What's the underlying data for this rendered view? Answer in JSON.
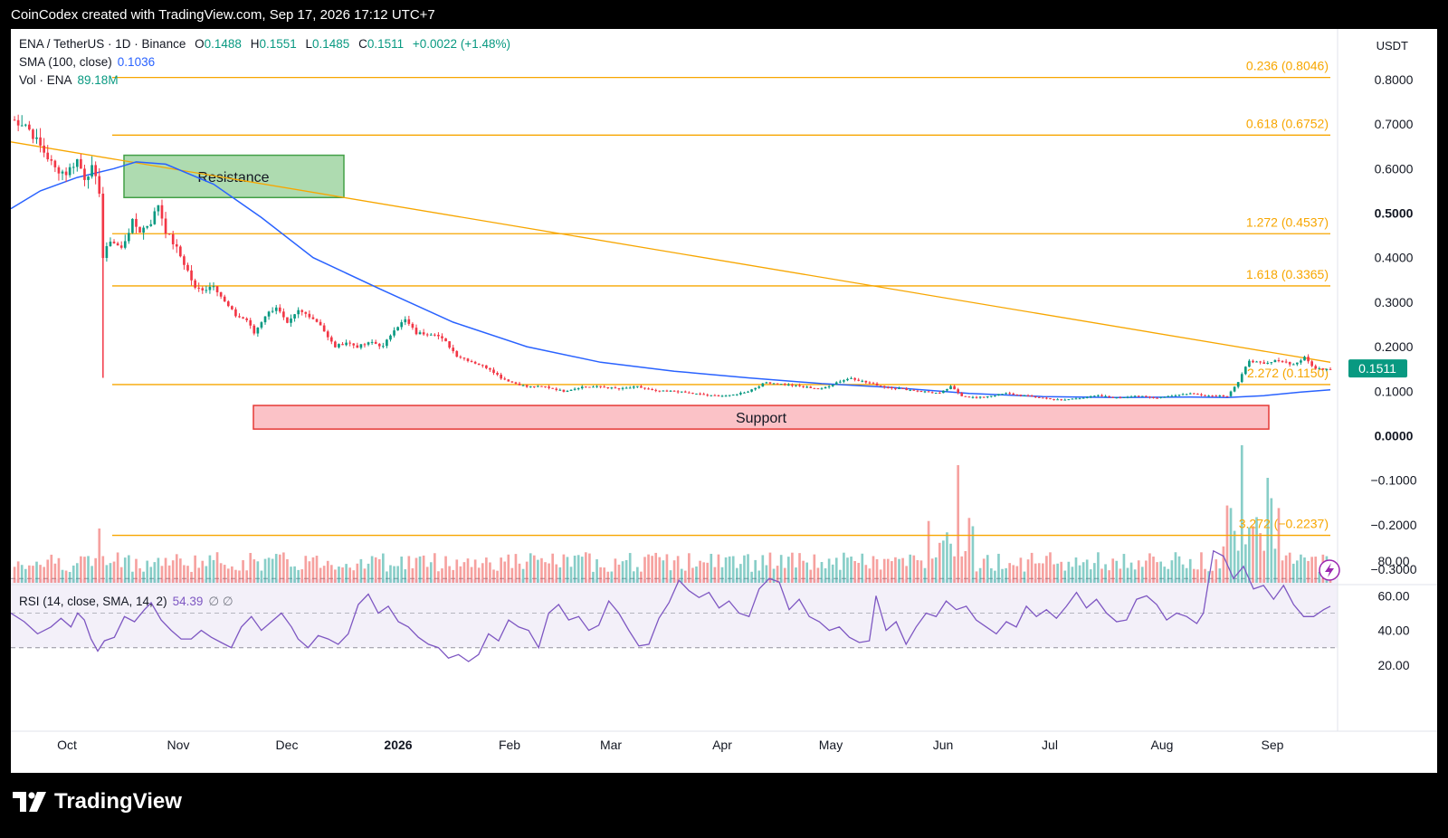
{
  "header": {
    "text": "CoinCodex created with TradingView.com, Sep 17, 2026 17:12 UTC+7"
  },
  "footer": {
    "brand": "TradingView",
    "logo_icon": "tradingview-logo-icon"
  },
  "legend": {
    "symbol": "ENA / TetherUS · 1D · Binance",
    "o_label": "O",
    "o_value": "0.1488",
    "h_label": "H",
    "h_value": "0.1551",
    "l_label": "L",
    "l_value": "0.1485",
    "c_label": "C",
    "c_value": "0.1511",
    "change": "+0.0022 (+1.48%)",
    "sma_label": "SMA (100, close)",
    "sma_value": "0.1036",
    "vol_label": "Vol · ENA",
    "vol_value": "89.18M",
    "rsi_label": "RSI (14, close, SMA, 14, 2)",
    "rsi_value": "54.39",
    "rsi_extra": "∅ ∅"
  },
  "currency": "USDT",
  "colors": {
    "up": "#089981",
    "down": "#f23645",
    "sma": "#2962ff",
    "fib": "#f7a600",
    "rsi": "#7e57c2",
    "resistance": "#4caf50",
    "support": "#f23645"
  },
  "chart_data": {
    "type": "candlestick",
    "price_axis": {
      "ticks": [
        "0.8000",
        "0.7000",
        "0.6000",
        "0.5000",
        "0.4000",
        "0.3000",
        "0.2000",
        "0.1000",
        "0.0000",
        "−0.1000",
        "−0.2000",
        "−0.3000"
      ],
      "bold": [
        "0.5000",
        "0.0000"
      ],
      "last_price": "0.1511"
    },
    "x_axis": {
      "labels": [
        "Oct",
        "Nov",
        "Dec",
        "2026",
        "Feb",
        "Mar",
        "Apr",
        "May",
        "Jun",
        "Jul",
        "Aug",
        "Sep"
      ]
    },
    "fib_levels": [
      {
        "label": "0.236 (0.8046)",
        "value": 0.8046
      },
      {
        "label": "0.618 (0.6752)",
        "value": 0.6752
      },
      {
        "label": "1.272 (0.4537)",
        "value": 0.4537
      },
      {
        "label": "1.618 (0.3365)",
        "value": 0.3365
      },
      {
        "label": "2.272 (0.1150)",
        "value": 0.115
      },
      {
        "label": "3.272 (−0.2237)",
        "value": -0.2237
      }
    ],
    "zones": [
      {
        "label": "Resistance",
        "from": 0.535,
        "to": 0.63,
        "start": "Oct 12",
        "end": "Dec 15"
      },
      {
        "label": "Support",
        "from": 0.015,
        "to": 0.068,
        "start": "Nov 22",
        "end": "Aug 25"
      }
    ],
    "trendline": {
      "from": [
        0,
        0.66
      ],
      "to": [
        358,
        0.165
      ]
    },
    "sma100_path": [
      [
        0,
        0.51
      ],
      [
        8,
        0.55
      ],
      [
        18,
        0.58
      ],
      [
        28,
        0.6
      ],
      [
        34,
        0.615
      ],
      [
        42,
        0.61
      ],
      [
        55,
        0.565
      ],
      [
        68,
        0.49
      ],
      [
        82,
        0.4
      ],
      [
        100,
        0.33
      ],
      [
        120,
        0.255
      ],
      [
        140,
        0.2
      ],
      [
        160,
        0.165
      ],
      [
        180,
        0.145
      ],
      [
        200,
        0.13
      ],
      [
        220,
        0.117
      ],
      [
        240,
        0.108
      ],
      [
        260,
        0.095
      ],
      [
        280,
        0.088
      ],
      [
        300,
        0.086
      ],
      [
        320,
        0.087
      ],
      [
        330,
        0.086
      ],
      [
        340,
        0.09
      ],
      [
        350,
        0.098
      ],
      [
        358,
        0.103
      ]
    ],
    "close_path": [
      [
        0,
        0.71
      ],
      [
        4,
        0.7
      ],
      [
        8,
        0.65
      ],
      [
        12,
        0.6
      ],
      [
        15,
        0.59
      ],
      [
        18,
        0.62
      ],
      [
        20,
        0.58
      ],
      [
        22,
        0.6
      ],
      [
        24,
        0.55
      ],
      [
        25,
        0.4
      ],
      [
        27,
        0.44
      ],
      [
        30,
        0.42
      ],
      [
        33,
        0.48
      ],
      [
        35,
        0.46
      ],
      [
        38,
        0.48
      ],
      [
        40,
        0.52
      ],
      [
        42,
        0.46
      ],
      [
        45,
        0.42
      ],
      [
        48,
        0.37
      ],
      [
        50,
        0.33
      ],
      [
        53,
        0.33
      ],
      [
        55,
        0.34
      ],
      [
        58,
        0.3
      ],
      [
        61,
        0.27
      ],
      [
        64,
        0.26
      ],
      [
        66,
        0.23
      ],
      [
        69,
        0.27
      ],
      [
        72,
        0.29
      ],
      [
        75,
        0.25
      ],
      [
        78,
        0.28
      ],
      [
        81,
        0.27
      ],
      [
        84,
        0.25
      ],
      [
        86,
        0.22
      ],
      [
        88,
        0.2
      ],
      [
        91,
        0.21
      ],
      [
        94,
        0.2
      ],
      [
        98,
        0.21
      ],
      [
        101,
        0.2
      ],
      [
        104,
        0.24
      ],
      [
        107,
        0.26
      ],
      [
        110,
        0.23
      ],
      [
        115,
        0.23
      ],
      [
        118,
        0.21
      ],
      [
        121,
        0.18
      ],
      [
        124,
        0.17
      ],
      [
        127,
        0.16
      ],
      [
        130,
        0.15
      ],
      [
        133,
        0.13
      ],
      [
        136,
        0.12
      ],
      [
        140,
        0.11
      ],
      [
        145,
        0.11
      ],
      [
        150,
        0.1
      ],
      [
        155,
        0.11
      ],
      [
        160,
        0.11
      ],
      [
        165,
        0.105
      ],
      [
        170,
        0.11
      ],
      [
        175,
        0.1
      ],
      [
        180,
        0.1
      ],
      [
        185,
        0.095
      ],
      [
        190,
        0.09
      ],
      [
        195,
        0.09
      ],
      [
        200,
        0.1
      ],
      [
        205,
        0.12
      ],
      [
        210,
        0.115
      ],
      [
        215,
        0.11
      ],
      [
        220,
        0.105
      ],
      [
        224,
        0.12
      ],
      [
        228,
        0.13
      ],
      [
        232,
        0.12
      ],
      [
        237,
        0.11
      ],
      [
        242,
        0.105
      ],
      [
        247,
        0.1
      ],
      [
        252,
        0.095
      ],
      [
        255,
        0.11
      ],
      [
        258,
        0.09
      ],
      [
        262,
        0.085
      ],
      [
        266,
        0.09
      ],
      [
        270,
        0.095
      ],
      [
        275,
        0.09
      ],
      [
        280,
        0.085
      ],
      [
        285,
        0.08
      ],
      [
        290,
        0.085
      ],
      [
        295,
        0.09
      ],
      [
        300,
        0.085
      ],
      [
        305,
        0.09
      ],
      [
        310,
        0.085
      ],
      [
        315,
        0.09
      ],
      [
        320,
        0.095
      ],
      [
        325,
        0.09
      ],
      [
        330,
        0.09
      ],
      [
        333,
        0.12
      ],
      [
        336,
        0.17
      ],
      [
        340,
        0.16
      ],
      [
        344,
        0.17
      ],
      [
        348,
        0.16
      ],
      [
        351,
        0.175
      ],
      [
        354,
        0.15
      ],
      [
        358,
        0.151
      ]
    ],
    "rsi": {
      "ticks": [
        "80.00",
        "60.00",
        "40.00",
        "20.00"
      ],
      "bands": [
        30,
        50,
        70
      ],
      "path": [
        [
          0,
          50
        ],
        [
          4,
          45
        ],
        [
          8,
          38
        ],
        [
          12,
          42
        ],
        [
          15,
          47
        ],
        [
          18,
          42
        ],
        [
          20,
          50
        ],
        [
          22,
          46
        ],
        [
          24,
          35
        ],
        [
          26,
          28
        ],
        [
          28,
          34
        ],
        [
          31,
          36
        ],
        [
          34,
          48
        ],
        [
          37,
          45
        ],
        [
          40,
          52
        ],
        [
          42,
          56
        ],
        [
          45,
          46
        ],
        [
          48,
          40
        ],
        [
          51,
          35
        ],
        [
          54,
          35
        ],
        [
          57,
          40
        ],
        [
          60,
          36
        ],
        [
          63,
          33
        ],
        [
          66,
          30
        ],
        [
          69,
          42
        ],
        [
          72,
          48
        ],
        [
          75,
          40
        ],
        [
          78,
          45
        ],
        [
          81,
          50
        ],
        [
          84,
          42
        ],
        [
          86,
          35
        ],
        [
          89,
          30
        ],
        [
          92,
          37
        ],
        [
          95,
          35
        ],
        [
          98,
          32
        ],
        [
          101,
          38
        ],
        [
          104,
          55
        ],
        [
          107,
          61
        ],
        [
          110,
          50
        ],
        [
          113,
          54
        ],
        [
          116,
          45
        ],
        [
          119,
          42
        ],
        [
          122,
          36
        ],
        [
          125,
          32
        ],
        [
          128,
          30
        ],
        [
          131,
          24
        ],
        [
          134,
          26
        ],
        [
          137,
          22
        ],
        [
          140,
          26
        ],
        [
          143,
          38
        ],
        [
          146,
          34
        ],
        [
          149,
          46
        ],
        [
          152,
          42
        ],
        [
          155,
          40
        ],
        [
          158,
          30
        ],
        [
          161,
          50
        ],
        [
          164,
          55
        ],
        [
          167,
          46
        ],
        [
          170,
          48
        ],
        [
          173,
          40
        ],
        [
          176,
          43
        ],
        [
          179,
          57
        ],
        [
          182,
          50
        ],
        [
          185,
          40
        ],
        [
          188,
          31
        ],
        [
          191,
          32
        ],
        [
          194,
          47
        ],
        [
          197,
          56
        ],
        [
          200,
          69
        ],
        [
          203,
          63
        ],
        [
          206,
          59
        ],
        [
          209,
          62
        ],
        [
          212,
          53
        ],
        [
          215,
          57
        ],
        [
          218,
          50
        ],
        [
          221,
          48
        ],
        [
          224,
          64
        ],
        [
          227,
          70
        ],
        [
          230,
          68
        ],
        [
          233,
          52
        ],
        [
          236,
          58
        ],
        [
          239,
          48
        ],
        [
          242,
          45
        ],
        [
          245,
          40
        ],
        [
          248,
          42
        ],
        [
          251,
          36
        ],
        [
          254,
          33
        ],
        [
          257,
          34
        ],
        [
          259,
          60
        ],
        [
          262,
          40
        ],
        [
          265,
          45
        ],
        [
          268,
          32
        ],
        [
          271,
          42
        ],
        [
          274,
          50
        ],
        [
          277,
          48
        ],
        [
          280,
          57
        ],
        [
          283,
          52
        ],
        [
          286,
          54
        ],
        [
          289,
          46
        ],
        [
          292,
          42
        ],
        [
          295,
          38
        ],
        [
          298,
          45
        ],
        [
          301,
          42
        ],
        [
          304,
          54
        ],
        [
          307,
          48
        ],
        [
          310,
          52
        ],
        [
          313,
          47
        ],
        [
          316,
          54
        ],
        [
          319,
          62
        ],
        [
          322,
          53
        ],
        [
          325,
          58
        ],
        [
          328,
          50
        ],
        [
          331,
          45
        ],
        [
          334,
          46
        ],
        [
          337,
          58
        ],
        [
          340,
          60
        ],
        [
          343,
          55
        ],
        [
          346,
          46
        ],
        [
          349,
          50
        ],
        [
          352,
          48
        ],
        [
          355,
          44
        ],
        [
          357,
          50
        ],
        [
          360,
          86
        ],
        [
          363,
          83
        ],
        [
          366,
          70
        ],
        [
          369,
          77
        ],
        [
          372,
          64
        ],
        [
          375,
          66
        ],
        [
          378,
          58
        ],
        [
          381,
          66
        ],
        [
          384,
          55
        ],
        [
          387,
          48
        ],
        [
          390,
          48
        ],
        [
          393,
          52
        ],
        [
          395,
          54
        ]
      ]
    }
  }
}
